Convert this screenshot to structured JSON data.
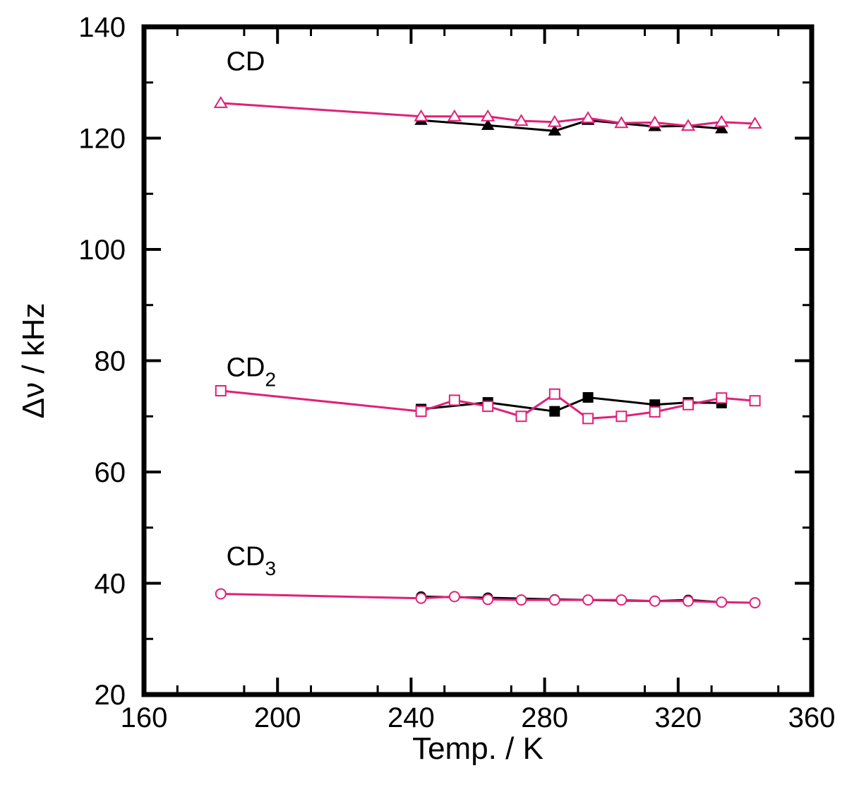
{
  "chart_data": {
    "type": "line",
    "xlabel": "Temp. / K",
    "ylabel": "Δν / kHz",
    "xlim": [
      160,
      360
    ],
    "ylim": [
      20,
      140
    ],
    "x_ticks": [
      "160",
      "200",
      "240",
      "280",
      "320",
      "360"
    ],
    "y_ticks": [
      "20",
      "40",
      "60",
      "80",
      "100",
      "120",
      "140"
    ],
    "colors": {
      "black": "#000000",
      "magenta": "#e0207a"
    },
    "annotations": [
      {
        "id": "cd",
        "text": "CD",
        "sub": "",
        "x": 180,
        "y": 134
      },
      {
        "id": "cd2",
        "text": "CD",
        "sub": "2",
        "x": 180,
        "y": 79
      },
      {
        "id": "cd3",
        "text": "CD",
        "sub": "3",
        "x": 180,
        "y": 45
      }
    ],
    "series": [
      {
        "group": "CD",
        "color": "#000000",
        "marker": "triangle",
        "filled": true,
        "x": [
          243,
          263,
          283,
          293,
          313,
          323,
          333
        ],
        "y": [
          123.2,
          122.3,
          121.3,
          123.2,
          122.1,
          122.2,
          121.7
        ]
      },
      {
        "group": "CD",
        "color": "#e0207a",
        "marker": "triangle",
        "filled": false,
        "x": [
          183,
          243,
          253,
          263,
          273,
          283,
          293,
          303,
          313,
          323,
          333,
          343
        ],
        "y": [
          126.3,
          123.9,
          123.9,
          123.9,
          123.1,
          122.9,
          123.6,
          122.7,
          122.8,
          122.2,
          122.9,
          122.6
        ]
      },
      {
        "group": "CD2",
        "color": "#000000",
        "marker": "square",
        "filled": true,
        "x": [
          243,
          263,
          283,
          293,
          313,
          323,
          333
        ],
        "y": [
          71.3,
          72.5,
          70.9,
          73.4,
          72.1,
          72.5,
          72.4
        ]
      },
      {
        "group": "CD2",
        "color": "#e0207a",
        "marker": "square",
        "filled": false,
        "x": [
          183,
          243,
          253,
          263,
          273,
          283,
          293,
          303,
          313,
          323,
          333,
          343
        ],
        "y": [
          74.6,
          70.9,
          72.9,
          71.8,
          70.0,
          74.0,
          69.6,
          70.0,
          70.8,
          72.1,
          73.3,
          72.8
        ]
      },
      {
        "group": "CD3",
        "color": "#000000",
        "marker": "circle",
        "filled": true,
        "x": [
          243,
          263,
          283,
          293,
          313,
          323,
          333
        ],
        "y": [
          37.6,
          37.4,
          37.1,
          37.0,
          36.8,
          37.0,
          36.6
        ]
      },
      {
        "group": "CD3",
        "color": "#e0207a",
        "marker": "circle",
        "filled": false,
        "x": [
          183,
          243,
          253,
          263,
          273,
          283,
          293,
          303,
          313,
          323,
          333,
          343
        ],
        "y": [
          38.1,
          37.3,
          37.6,
          37.1,
          37.0,
          37.0,
          37.0,
          37.0,
          36.8,
          36.8,
          36.6,
          36.5
        ]
      }
    ]
  }
}
